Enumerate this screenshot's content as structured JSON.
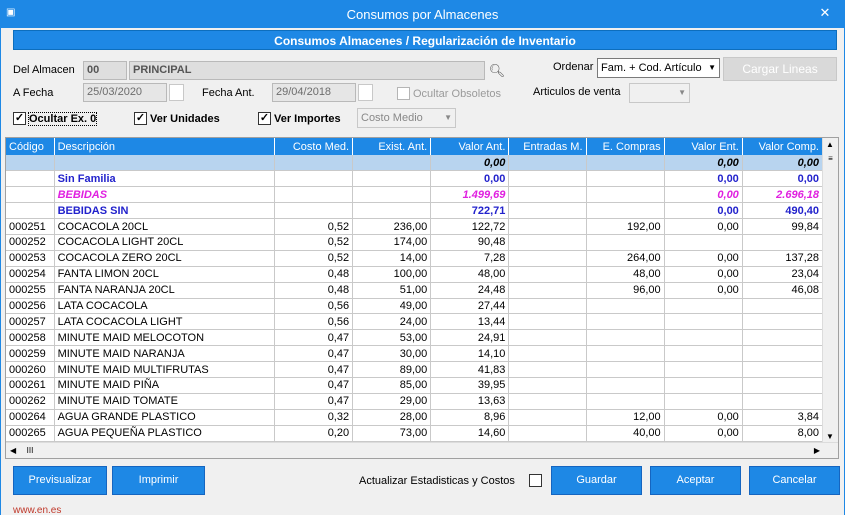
{
  "window": {
    "title": "Consumos por Almacenes",
    "close": "✕",
    "app_icon": "document-icon"
  },
  "banner": "Consumos Almacenes / Regularización de Inventario",
  "form": {
    "del_almacen_label": "Del Almacen",
    "almacen_code": "00",
    "almacen_name": "PRINCIPAL",
    "a_fecha_label": "A Fecha",
    "a_fecha_value": "25/03/2020",
    "fecha_ant_label": "Fecha Ant.",
    "fecha_ant_value": "29/04/2018",
    "ocultar_obsoletos": "Ocultar Obsoletos",
    "ordenar_label": "Ordenar",
    "ordenar_value": "Fam. + Cod. Artículo",
    "cargar_lineas": "Cargar Lineas",
    "articulos_venta_label": "Articulos de venta",
    "articulos_venta_value": "",
    "ocultar_ex0": "Ocultar Ex. 0",
    "ver_unidades": "Ver Unidades",
    "ver_importes": "Ver Importes",
    "costo_select": "Costo Medio"
  },
  "table": {
    "headers": [
      "Código",
      "Descripción",
      "Costo Med.",
      "Exist. Ant.",
      "Valor Ant.",
      "Entradas M.",
      "E. Compras",
      "Valor Ent.",
      "Valor Comp."
    ],
    "rows": [
      {
        "type": "total",
        "cells": [
          "",
          "",
          "",
          "",
          "0,00",
          "",
          "",
          "0,00",
          "0,00"
        ]
      },
      {
        "type": "fam",
        "cells": [
          "",
          "Sin Familia",
          "",
          "",
          "0,00",
          "",
          "",
          "0,00",
          "0,00"
        ]
      },
      {
        "type": "fam2",
        "cells": [
          "",
          "BEBIDAS",
          "",
          "",
          "1.499,69",
          "",
          "",
          "0,00",
          "2.696,18"
        ]
      },
      {
        "type": "fam",
        "cells": [
          "",
          "BEBIDAS SIN",
          "",
          "",
          "722,71",
          "",
          "",
          "0,00",
          "490,40"
        ]
      },
      {
        "type": "item",
        "cells": [
          "000251",
          "COCACOLA 20CL",
          "0,52",
          "236,00",
          "122,72",
          "",
          "192,00",
          "0,00",
          "99,84"
        ]
      },
      {
        "type": "item",
        "cells": [
          "000252",
          "COCACOLA LIGHT 20CL",
          "0,52",
          "174,00",
          "90,48",
          "",
          "",
          "",
          ""
        ]
      },
      {
        "type": "item",
        "cells": [
          "000253",
          "COCACOLA ZERO 20CL",
          "0,52",
          "14,00",
          "7,28",
          "",
          "264,00",
          "0,00",
          "137,28"
        ]
      },
      {
        "type": "item",
        "cells": [
          "000254",
          "FANTA LIMON 20CL",
          "0,48",
          "100,00",
          "48,00",
          "",
          "48,00",
          "0,00",
          "23,04"
        ]
      },
      {
        "type": "item",
        "cells": [
          "000255",
          "FANTA NARANJA 20CL",
          "0,48",
          "51,00",
          "24,48",
          "",
          "96,00",
          "0,00",
          "46,08"
        ]
      },
      {
        "type": "item",
        "cells": [
          "000256",
          "LATA COCACOLA",
          "0,56",
          "49,00",
          "27,44",
          "",
          "",
          "",
          ""
        ]
      },
      {
        "type": "item",
        "cells": [
          "000257",
          "LATA COCACOLA LIGHT",
          "0,56",
          "24,00",
          "13,44",
          "",
          "",
          "",
          ""
        ]
      },
      {
        "type": "item",
        "cells": [
          "000258",
          "MINUTE MAID MELOCOTON",
          "0,47",
          "53,00",
          "24,91",
          "",
          "",
          "",
          ""
        ]
      },
      {
        "type": "item",
        "cells": [
          "000259",
          "MINUTE MAID NARANJA",
          "0,47",
          "30,00",
          "14,10",
          "",
          "",
          "",
          ""
        ]
      },
      {
        "type": "item",
        "cells": [
          "000260",
          "MINUTE MAID MULTIFRUTAS",
          "0,47",
          "89,00",
          "41,83",
          "",
          "",
          "",
          ""
        ]
      },
      {
        "type": "item",
        "cells": [
          "000261",
          "MINUTE MAID PIÑA",
          "0,47",
          "85,00",
          "39,95",
          "",
          "",
          "",
          ""
        ]
      },
      {
        "type": "item",
        "cells": [
          "000262",
          "MINUTE MAID TOMATE",
          "0,47",
          "29,00",
          "13,63",
          "",
          "",
          "",
          ""
        ]
      },
      {
        "type": "item",
        "cells": [
          "000264",
          "AGUA GRANDE PLASTICO",
          "0,32",
          "28,00",
          "8,96",
          "",
          "12,00",
          "0,00",
          "3,84"
        ]
      },
      {
        "type": "item",
        "cells": [
          "000265",
          "AGUA PEQUEÑA PLASTICO",
          "0,20",
          "73,00",
          "14,60",
          "",
          "40,00",
          "0,00",
          "8,00"
        ]
      }
    ]
  },
  "footer": {
    "previsualizar": "Previsualizar",
    "imprimir": "Imprimir",
    "actualizar_label": "Actualizar Estadisticas y Costos",
    "guardar": "Guardar",
    "aceptar": "Aceptar",
    "cancelar": "Cancelar",
    "url": "www.en.es"
  },
  "glyphs": {
    "check": "✓",
    "down": "▼",
    "up": "▲",
    "left": "◀",
    "right": "▶",
    "grip_v": "≡",
    "grip_h": "III",
    "binoculars": "⛏"
  }
}
